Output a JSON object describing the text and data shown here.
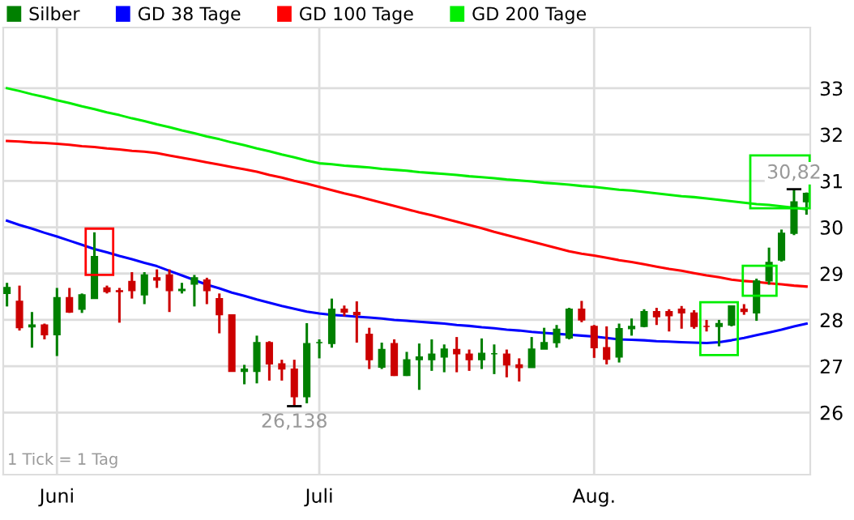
{
  "chart_data": {
    "type": "candlestick",
    "categories": [
      null,
      null,
      null,
      null,
      "Juni",
      null,
      null,
      null,
      null,
      null,
      null,
      null,
      null,
      null,
      null,
      null,
      null,
      null,
      null,
      null,
      null,
      null,
      null,
      null,
      null,
      "Juli",
      null,
      null,
      null,
      null,
      null,
      null,
      null,
      null,
      null,
      null,
      null,
      null,
      null,
      null,
      null,
      null,
      null,
      null,
      null,
      null,
      null,
      "Aug.",
      null,
      null,
      null,
      null,
      null,
      null,
      null,
      null,
      null,
      null,
      null,
      null,
      null,
      null,
      null,
      null,
      null
    ],
    "series": [
      {
        "name": "Silber",
        "type": "candlestick",
        "color": "#008000",
        "colors": [
          "#008000",
          "#cc0000",
          "#008000",
          "#cc0000",
          "#008000",
          "#cc0000",
          "#008000",
          "#008000",
          "#cc0000",
          "#cc0000",
          "#cc0000",
          "#008000",
          "#cc0000",
          "#cc0000",
          "#008000",
          "#008000",
          "#cc0000",
          "#cc0000",
          "#cc0000",
          "#008000",
          "#008000",
          "#cc0000",
          "#cc0000",
          "#cc0000",
          "#008000",
          "#008000",
          "#008000",
          "#cc0000",
          "#cc0000",
          "#cc0000",
          "#008000",
          "#cc0000",
          "#008000",
          "#008000",
          "#008000",
          "#008000",
          "#cc0000",
          "#cc0000",
          "#008000",
          "#008000",
          "#cc0000",
          "#cc0000",
          "#008000",
          "#008000",
          "#008000",
          "#008000",
          "#cc0000",
          "#cc0000",
          "#cc0000",
          "#008000",
          "#008000",
          "#008000",
          "#cc0000",
          "#cc0000",
          "#cc0000",
          "#cc0000",
          "#cc0000",
          "#008000",
          "#008000",
          "#cc0000",
          "#008000",
          "#008000",
          "#008000",
          "#008000",
          "#008000"
        ],
        "ohlc": [
          [
            28.57,
            28.8,
            28.29,
            28.7
          ],
          [
            28.4,
            28.74,
            27.77,
            27.83
          ],
          [
            27.85,
            28.17,
            27.4,
            27.89
          ],
          [
            27.89,
            27.92,
            27.58,
            27.68
          ],
          [
            27.68,
            28.69,
            27.22,
            28.48
          ],
          [
            28.48,
            28.69,
            28.15,
            28.17
          ],
          [
            28.23,
            28.57,
            28.15,
            28.54
          ],
          [
            28.46,
            29.89,
            28.46,
            29.37
          ],
          [
            28.69,
            28.74,
            28.57,
            28.61
          ],
          [
            28.63,
            28.69,
            27.94,
            28.61
          ],
          [
            28.83,
            29.03,
            28.46,
            28.63
          ],
          [
            28.54,
            29.03,
            28.34,
            28.97
          ],
          [
            28.91,
            29.09,
            28.69,
            28.86
          ],
          [
            28.97,
            29.09,
            28.17,
            28.63
          ],
          [
            28.63,
            28.8,
            28.57,
            28.66
          ],
          [
            28.77,
            28.97,
            28.29,
            28.91
          ],
          [
            28.86,
            28.91,
            28.34,
            28.63
          ],
          [
            28.46,
            28.57,
            27.71,
            28.11
          ],
          [
            28.11,
            28.11,
            26.89,
            26.89
          ],
          [
            26.89,
            27.03,
            26.61,
            26.94
          ],
          [
            26.89,
            27.66,
            26.63,
            27.51
          ],
          [
            27.51,
            27.54,
            26.69,
            27.05
          ],
          [
            27.05,
            27.14,
            26.69,
            26.94
          ],
          [
            26.94,
            27.14,
            26.138,
            26.34
          ],
          [
            26.34,
            27.93,
            26.2,
            27.49
          ],
          [
            27.51,
            27.58,
            27.17,
            27.51
          ],
          [
            27.49,
            28.46,
            27.4,
            28.23
          ],
          [
            28.23,
            28.31,
            28.08,
            28.17
          ],
          [
            28.16,
            28.4,
            27.51,
            28.11
          ],
          [
            27.69,
            27.83,
            26.94,
            27.14
          ],
          [
            26.98,
            27.51,
            26.94,
            27.36
          ],
          [
            27.49,
            27.58,
            26.79,
            26.8
          ],
          [
            26.8,
            27.31,
            26.79,
            27.14
          ],
          [
            27.14,
            27.49,
            26.49,
            27.2
          ],
          [
            27.14,
            27.58,
            26.9,
            27.26
          ],
          [
            27.2,
            27.47,
            26.87,
            27.37
          ],
          [
            27.36,
            27.63,
            26.87,
            27.27
          ],
          [
            27.26,
            27.36,
            26.9,
            27.14
          ],
          [
            27.14,
            27.6,
            26.94,
            27.28
          ],
          [
            27.27,
            27.47,
            26.83,
            27.27
          ],
          [
            27.26,
            27.36,
            26.76,
            27.03
          ],
          [
            27.03,
            27.17,
            26.67,
            26.97
          ],
          [
            26.97,
            27.63,
            26.97,
            27.37
          ],
          [
            27.37,
            27.83,
            27.37,
            27.51
          ],
          [
            27.51,
            27.89,
            27.4,
            27.8
          ],
          [
            27.61,
            28.26,
            27.58,
            28.23
          ],
          [
            28.23,
            28.41,
            27.95,
            28.0
          ],
          [
            27.86,
            27.89,
            27.18,
            27.4
          ],
          [
            27.4,
            27.86,
            27.04,
            27.15
          ],
          [
            27.2,
            27.92,
            27.08,
            27.81
          ],
          [
            27.81,
            28.03,
            27.66,
            27.86
          ],
          [
            27.86,
            28.23,
            27.84,
            28.18
          ],
          [
            28.18,
            28.26,
            27.89,
            28.07
          ],
          [
            28.18,
            28.23,
            27.75,
            28.09
          ],
          [
            28.23,
            28.3,
            27.81,
            28.15
          ],
          [
            28.15,
            28.21,
            27.81,
            27.86
          ],
          [
            27.86,
            28.0,
            27.75,
            27.86
          ],
          [
            27.86,
            28.0,
            27.43,
            27.92
          ],
          [
            27.89,
            28.3,
            27.86,
            28.3
          ],
          [
            28.23,
            28.34,
            28.11,
            28.18
          ],
          [
            28.15,
            28.89,
            27.98,
            28.84
          ],
          [
            28.84,
            29.56,
            28.76,
            29.24
          ],
          [
            29.29,
            29.95,
            29.26,
            29.87
          ],
          [
            29.87,
            30.82,
            29.83,
            30.55
          ],
          [
            30.55,
            30.75,
            30.27,
            30.73
          ]
        ]
      },
      {
        "name": "GD 38 Tage",
        "type": "line",
        "color": "#0000ff",
        "values": [
          30.14,
          30.05,
          29.97,
          29.88,
          29.8,
          29.71,
          29.62,
          29.53,
          29.46,
          29.38,
          29.31,
          29.23,
          29.16,
          29.06,
          28.96,
          28.86,
          28.76,
          28.68,
          28.59,
          28.52,
          28.44,
          28.37,
          28.3,
          28.24,
          28.18,
          28.14,
          28.11,
          28.09,
          28.07,
          28.05,
          28.03,
          28.0,
          27.98,
          27.96,
          27.94,
          27.92,
          27.89,
          27.87,
          27.84,
          27.82,
          27.79,
          27.77,
          27.74,
          27.72,
          27.7,
          27.68,
          27.66,
          27.64,
          27.61,
          27.58,
          27.57,
          27.56,
          27.54,
          27.53,
          27.52,
          27.51,
          27.5,
          27.52,
          27.56,
          27.61,
          27.67,
          27.73,
          27.79,
          27.86,
          27.92
        ]
      },
      {
        "name": "GD 100 Tage",
        "type": "line",
        "color": "#ff0000",
        "values": [
          31.86,
          31.85,
          31.83,
          31.82,
          31.8,
          31.78,
          31.75,
          31.73,
          31.7,
          31.68,
          31.65,
          31.63,
          31.6,
          31.55,
          31.5,
          31.45,
          31.4,
          31.35,
          31.3,
          31.25,
          31.2,
          31.13,
          31.07,
          31.0,
          30.94,
          30.87,
          30.8,
          30.73,
          30.67,
          30.6,
          30.53,
          30.46,
          30.39,
          30.32,
          30.26,
          30.19,
          30.12,
          30.05,
          29.98,
          29.9,
          29.83,
          29.76,
          29.69,
          29.62,
          29.55,
          29.48,
          29.43,
          29.39,
          29.34,
          29.29,
          29.25,
          29.2,
          29.15,
          29.1,
          29.06,
          29.01,
          28.96,
          28.92,
          28.87,
          28.84,
          28.82,
          28.79,
          28.77,
          28.74,
          28.72
        ]
      },
      {
        "name": "GD 200 Tage",
        "type": "line",
        "color": "#00ee00",
        "values": [
          33.0,
          32.94,
          32.87,
          32.81,
          32.74,
          32.68,
          32.61,
          32.55,
          32.48,
          32.42,
          32.35,
          32.29,
          32.22,
          32.16,
          32.09,
          32.03,
          31.96,
          31.9,
          31.83,
          31.77,
          31.7,
          31.64,
          31.57,
          31.51,
          31.44,
          31.38,
          31.36,
          31.33,
          31.31,
          31.29,
          31.26,
          31.24,
          31.22,
          31.19,
          31.17,
          31.15,
          31.13,
          31.1,
          31.08,
          31.06,
          31.03,
          31.01,
          30.99,
          30.96,
          30.94,
          30.92,
          30.89,
          30.87,
          30.84,
          30.81,
          30.79,
          30.76,
          30.73,
          30.7,
          30.67,
          30.65,
          30.62,
          30.59,
          30.56,
          30.53,
          30.5,
          30.48,
          30.45,
          30.42,
          30.39
        ]
      }
    ],
    "ylim": [
      24.66,
      34.31
    ],
    "yticks": [
      26,
      27,
      28,
      29,
      30,
      31,
      32,
      33
    ],
    "grid": true,
    "legend": "top left",
    "annotations": [
      {
        "text": "26,138",
        "y": 26.138
      },
      {
        "text": "30,82",
        "y": 30.82
      },
      "1 Tick = 1 Tag"
    ]
  }
}
